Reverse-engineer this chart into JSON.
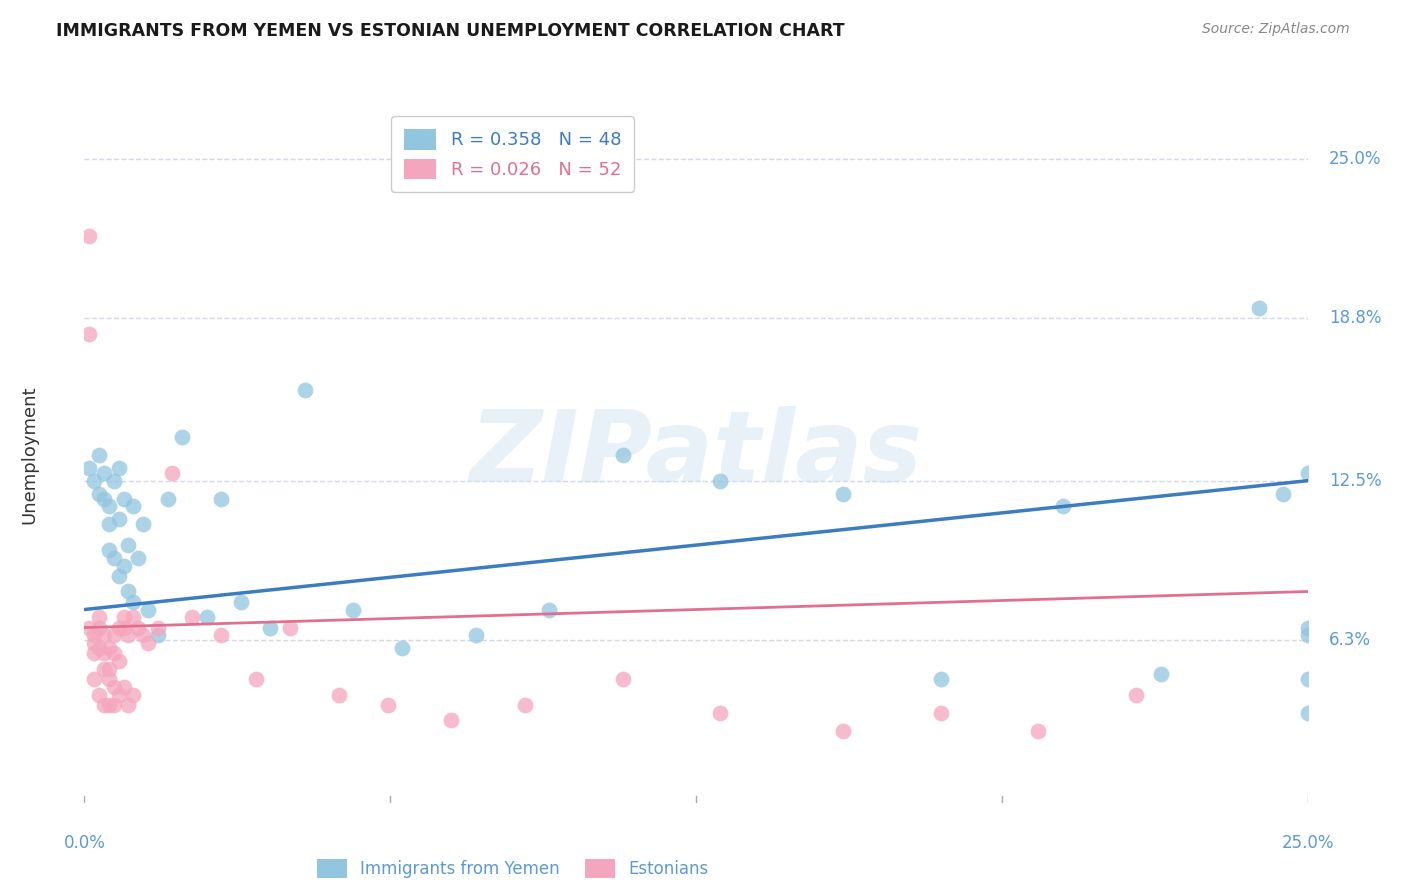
{
  "title": "IMMIGRANTS FROM YEMEN VS ESTONIAN UNEMPLOYMENT CORRELATION CHART",
  "source": "Source: ZipAtlas.com",
  "ylabel": "Unemployment",
  "ytick_labels": [
    "6.3%",
    "12.5%",
    "18.8%",
    "25.0%"
  ],
  "ytick_values": [
    0.063,
    0.125,
    0.188,
    0.25
  ],
  "xlim": [
    0.0,
    0.25
  ],
  "ylim": [
    0.0,
    0.27
  ],
  "legend1_label": "R = 0.358   N = 48",
  "legend2_label": "R = 0.026   N = 52",
  "legend_bottom_label1": "Immigrants from Yemen",
  "legend_bottom_label2": "Estonians",
  "watermark": "ZIPatlas",
  "blue_color": "#92c5de",
  "pink_color": "#f4a6be",
  "blue_line_color": "#3b7dbf",
  "pink_line_color": "#e07090",
  "axis_color": "#5b9bd5",
  "grid_color": "#d0d8e8",
  "blue_scatter_x": [
    0.001,
    0.002,
    0.003,
    0.003,
    0.004,
    0.004,
    0.005,
    0.005,
    0.005,
    0.006,
    0.006,
    0.007,
    0.007,
    0.007,
    0.008,
    0.008,
    0.009,
    0.009,
    0.01,
    0.01,
    0.011,
    0.012,
    0.013,
    0.015,
    0.017,
    0.02,
    0.025,
    0.028,
    0.032,
    0.038,
    0.045,
    0.055,
    0.065,
    0.08,
    0.095,
    0.11,
    0.13,
    0.155,
    0.175,
    0.2,
    0.22,
    0.24,
    0.245,
    0.25,
    0.25,
    0.25,
    0.25,
    0.25
  ],
  "blue_scatter_y": [
    0.13,
    0.125,
    0.135,
    0.12,
    0.128,
    0.118,
    0.115,
    0.108,
    0.098,
    0.125,
    0.095,
    0.13,
    0.11,
    0.088,
    0.118,
    0.092,
    0.1,
    0.082,
    0.115,
    0.078,
    0.095,
    0.108,
    0.075,
    0.065,
    0.118,
    0.142,
    0.072,
    0.118,
    0.078,
    0.068,
    0.16,
    0.075,
    0.06,
    0.065,
    0.075,
    0.135,
    0.125,
    0.12,
    0.048,
    0.115,
    0.05,
    0.192,
    0.12,
    0.128,
    0.068,
    0.065,
    0.035,
    0.048
  ],
  "pink_scatter_x": [
    0.001,
    0.001,
    0.001,
    0.002,
    0.002,
    0.002,
    0.002,
    0.003,
    0.003,
    0.003,
    0.003,
    0.004,
    0.004,
    0.004,
    0.004,
    0.005,
    0.005,
    0.005,
    0.005,
    0.006,
    0.006,
    0.006,
    0.006,
    0.007,
    0.007,
    0.007,
    0.008,
    0.008,
    0.008,
    0.009,
    0.009,
    0.01,
    0.01,
    0.011,
    0.012,
    0.013,
    0.015,
    0.018,
    0.022,
    0.028,
    0.035,
    0.042,
    0.052,
    0.062,
    0.075,
    0.09,
    0.11,
    0.13,
    0.155,
    0.175,
    0.195,
    0.215
  ],
  "pink_scatter_y": [
    0.22,
    0.182,
    0.068,
    0.065,
    0.062,
    0.058,
    0.048,
    0.072,
    0.06,
    0.068,
    0.042,
    0.065,
    0.058,
    0.052,
    0.038,
    0.052,
    0.048,
    0.06,
    0.038,
    0.065,
    0.058,
    0.045,
    0.038,
    0.055,
    0.068,
    0.042,
    0.072,
    0.068,
    0.045,
    0.065,
    0.038,
    0.072,
    0.042,
    0.068,
    0.065,
    0.062,
    0.068,
    0.128,
    0.072,
    0.065,
    0.048,
    0.068,
    0.042,
    0.038,
    0.032,
    0.038,
    0.048,
    0.035,
    0.028,
    0.035,
    0.028,
    0.042
  ],
  "blue_line_x": [
    0.0,
    0.25
  ],
  "blue_line_y": [
    0.075,
    0.125
  ],
  "pink_line_x": [
    0.0,
    0.25
  ],
  "pink_line_y": [
    0.068,
    0.082
  ]
}
